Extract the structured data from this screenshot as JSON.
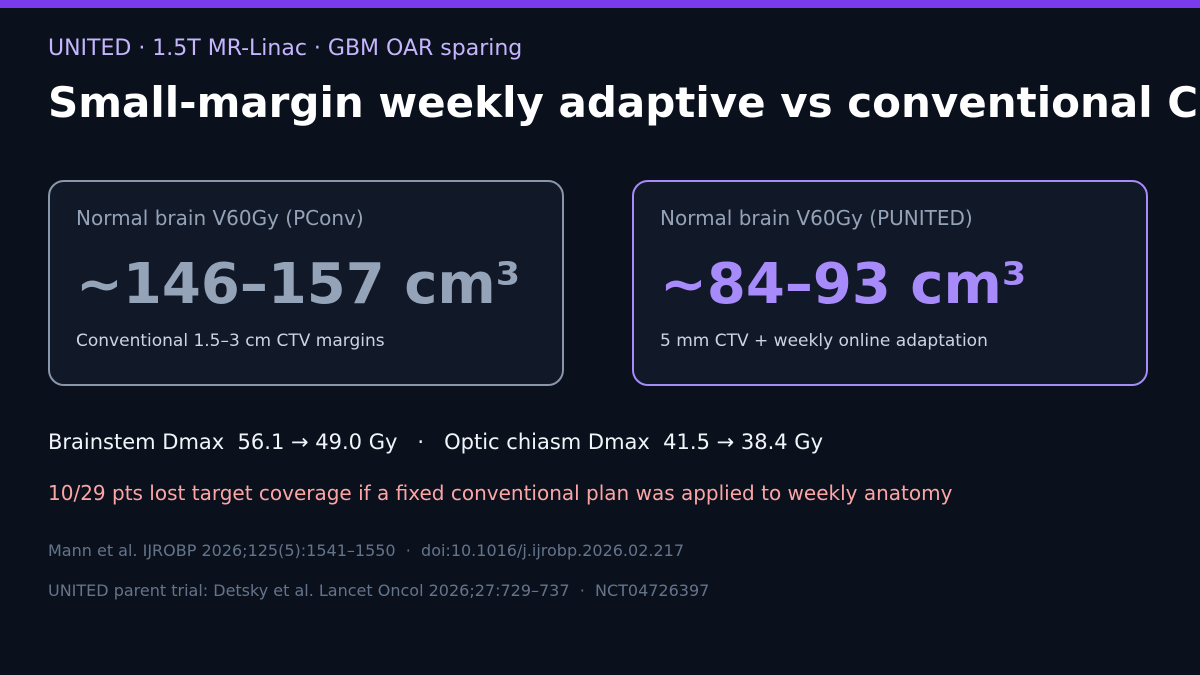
{
  "header": {
    "kicker": "UNITED · 1.5T MR-Linac · GBM OAR sparing",
    "title": "Small-margin weekly adaptive vs conventional C"
  },
  "cards": [
    {
      "label": "Normal brain V60Gy (PConv)",
      "value": "~146–157 cm³",
      "note": "Conventional 1.5–3 cm CTV margins"
    },
    {
      "label": "Normal brain V60Gy (PUNITED)",
      "value": "~84–93 cm³",
      "note": "5 mm CTV + weekly online adaptation"
    }
  ],
  "stats": "Brainstem Dmax  56.1 → 49.0 Gy   ·   Optic chiasm Dmax  41.5 → 38.4 Gy",
  "warning": "10/29 pts lost target coverage if a fixed conventional plan was applied to weekly anatomy",
  "references": [
    "Mann et al. IJROBP 2026;125(5):1541–1550  ·  doi:10.1016/j.ijrobp.2026.02.217",
    "UNITED parent trial: Detsky et al. Lancet Oncol 2026;27:729–737  ·  NCT04726397"
  ]
}
